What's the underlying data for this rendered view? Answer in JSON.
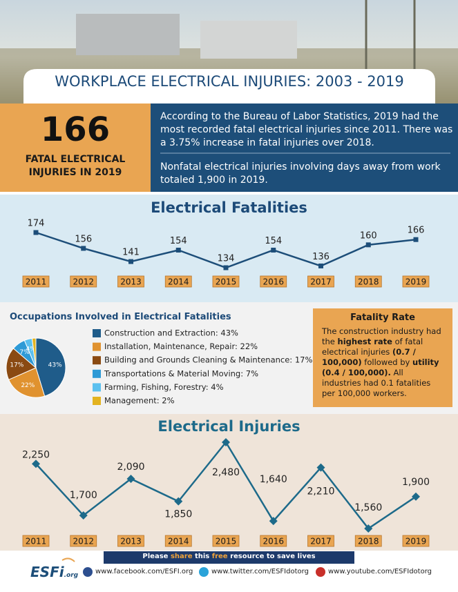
{
  "header": {
    "title": "WORKPLACE ELECTRICAL INJURIES: 2003 - 2019"
  },
  "highlight": {
    "number": 166,
    "label": "FATAL ELECTRICAL INJURIES IN 2019"
  },
  "summary": {
    "paragraphs": [
      "According to the Bureau of Labor Statistics, 2019 had the most recorded fatal electrical injuries since 2011. There was a 3.75% increase in fatal injuries over 2018.",
      "Nonfatal electrical injuries involving days away from work totaled 1,900 in 2019."
    ]
  },
  "chart_data": [
    {
      "type": "line",
      "title": "Electrical Fatalities",
      "categories": [
        "2011",
        "2012",
        "2013",
        "2014",
        "2015",
        "2016",
        "2017",
        "2018",
        "2019"
      ],
      "values": [
        174,
        156,
        141,
        154,
        134,
        154,
        136,
        160,
        166
      ],
      "color": "#1d4e79"
    },
    {
      "type": "pie",
      "title": "Occupations Involved in Electrical Fatalities",
      "categories": [
        "Construction and Extraction: 43%",
        "Installation, Maintenance, Repair: 22%",
        "Building and Grounds Cleaning & Maintenance: 17%",
        "Transportations & Material Moving: 7%",
        "Farming, Fishing, Forestry: 4%",
        "Management: 2%"
      ],
      "values": [
        43,
        22,
        17,
        7,
        4,
        2
      ],
      "value_labels": [
        "43%",
        "22%",
        "17%",
        "7%",
        "4%",
        null
      ],
      "colors": [
        "#1f5c8a",
        "#e0922f",
        "#8a4a12",
        "#2e9ad6",
        "#5bc0ef",
        "#e3b320"
      ]
    },
    {
      "type": "line",
      "title": "Electrical Injuries",
      "categories": [
        "2011",
        "2012",
        "2013",
        "2014",
        "2015",
        "2016",
        "2017",
        "2018",
        "2019"
      ],
      "values": [
        2250,
        1700,
        2090,
        1850,
        2480,
        1640,
        2210,
        1560,
        1900
      ],
      "value_labels": [
        "2,250",
        "1,700",
        "2,090",
        "1,850",
        "2,480",
        "1,640",
        "2,210",
        "1,560",
        "1,900"
      ],
      "color": "#1d6a8a"
    }
  ],
  "fatality_rate": {
    "title": "Fatality Rate",
    "runs": [
      {
        "text": "The construction industry had the ",
        "bold": false
      },
      {
        "text": "highest rate",
        "bold": true
      },
      {
        "text": " of fatal electrical injuries ",
        "bold": false
      },
      {
        "text": "(0.7 / 100,000)",
        "bold": true
      },
      {
        "text": " followed by ",
        "bold": false
      },
      {
        "text": "utility (0.4 / 100,000).",
        "bold": true
      },
      {
        "text": " All industries had 0.1 fatalities per 100,000 workers.",
        "bold": false
      }
    ]
  },
  "footer": {
    "banner": [
      "Please ",
      "share",
      " this ",
      "free",
      " resource to save lives"
    ],
    "logo": [
      "ESFi",
      ".org"
    ],
    "links": [
      "www.facebook.com/ESFI.org",
      "www.twitter.com/ESFIdotorg",
      "www.youtube.com/ESFIdotorg"
    ]
  }
}
